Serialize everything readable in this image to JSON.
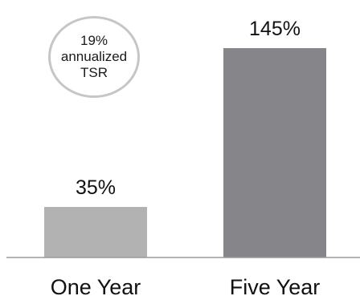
{
  "chart_data": {
    "type": "bar",
    "categories": [
      "One Year",
      "Five Year"
    ],
    "values": [
      35,
      145
    ],
    "value_labels": [
      "35%",
      "145%"
    ],
    "unit": "%",
    "ylim": [
      0,
      145
    ],
    "colors": [
      "#b2b2b2",
      "#85858a"
    ],
    "axis_color": "#9a9a9a",
    "grid": false,
    "annotation": {
      "lines": [
        "19%",
        "annualized",
        "TSR"
      ],
      "shape": "circle",
      "border_color": "#c6c6c6"
    }
  }
}
